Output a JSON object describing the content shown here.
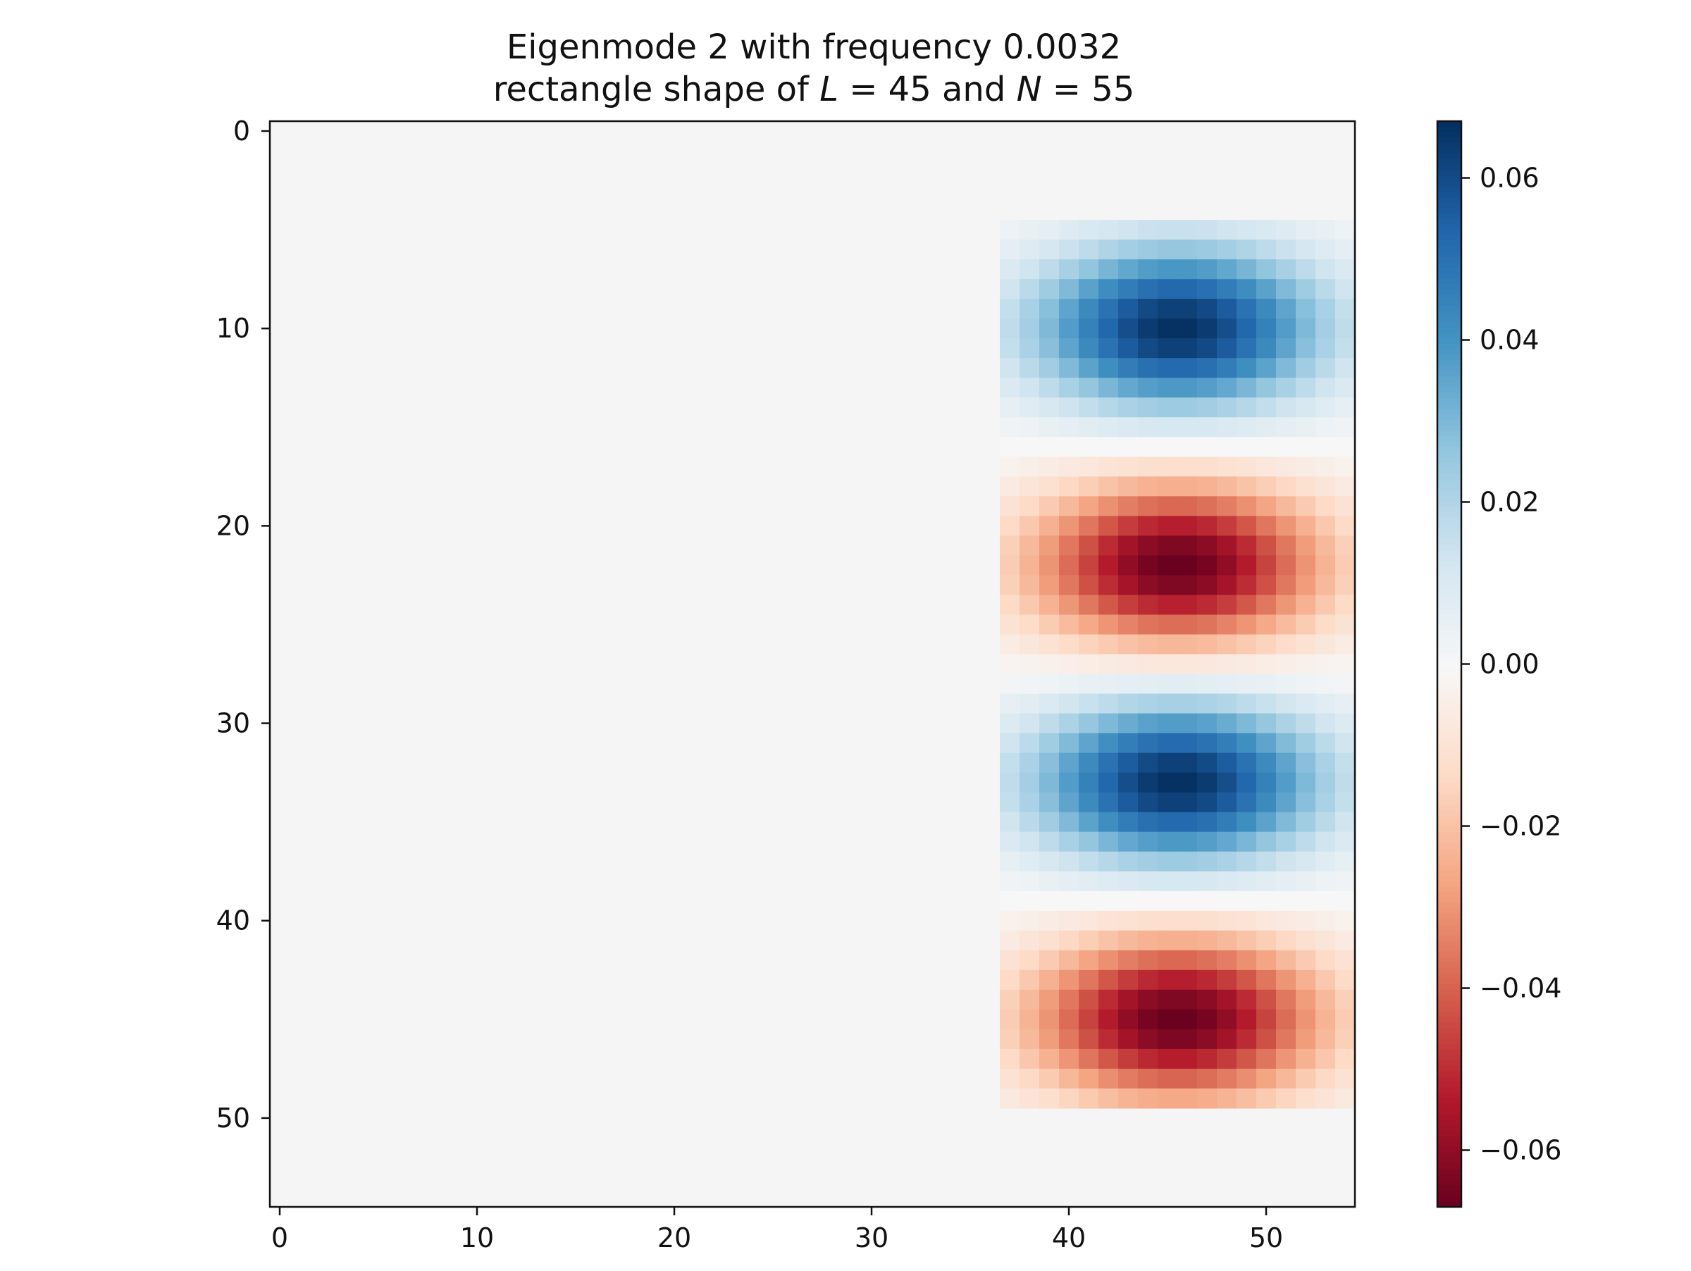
{
  "chart_data": {
    "type": "heatmap",
    "title": {
      "line1": "Eigenmode 2 with frequency 0.0032",
      "line2_prefix": "rectangle shape of ",
      "line2_var1": "L",
      "line2_eq1": " = 45 and ",
      "line2_var2": "N",
      "line2_eq2": " = 55"
    },
    "xlabel": "",
    "ylabel": "",
    "grid_size": 55,
    "xlim": [
      -0.5,
      54.5
    ],
    "ylim": [
      54.5,
      -0.5
    ],
    "y_inverted": true,
    "x_ticks": [
      "0",
      "10",
      "20",
      "30",
      "40",
      "50"
    ],
    "y_ticks": [
      "0",
      "10",
      "20",
      "30",
      "40",
      "50"
    ],
    "background_value": 0.0,
    "colormap": "RdBu",
    "vmin": -0.067,
    "vmax": 0.067,
    "colorbar_ticks": [
      "0.06",
      "0.04",
      "0.02",
      "0.00",
      "−0.02",
      "−0.04",
      "−0.06"
    ],
    "colorbar_tick_values": [
      0.06,
      0.04,
      0.02,
      0.0,
      -0.02,
      -0.04,
      -0.06
    ],
    "mode_region": {
      "col_start": 37,
      "col_end": 54,
      "row_start": 5,
      "row_end": 49
    },
    "lobes": [
      {
        "row_center": 10,
        "col_center": 45.5,
        "peak": 0.067
      },
      {
        "row_center": 22,
        "col_center": 45.5,
        "peak": -0.067
      },
      {
        "row_center": 33,
        "col_center": 45.5,
        "peak": 0.067
      },
      {
        "row_center": 45,
        "col_center": 45.5,
        "peak": -0.067
      }
    ],
    "colors": {
      "background": "#f5f5f5",
      "positive_max": "#053061",
      "negative_max": "#67001f",
      "zero": "#f7f7f7"
    }
  }
}
